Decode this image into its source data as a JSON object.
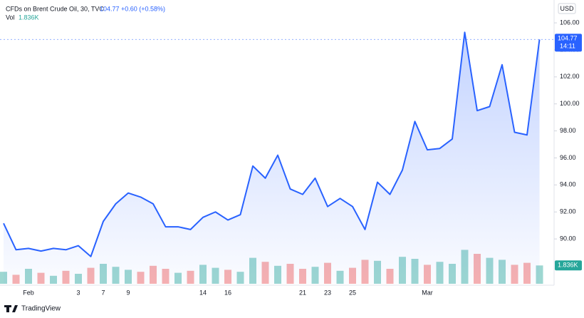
{
  "chart_data": {
    "type": "area",
    "title": "CFDs on Brent Crude Oil, 30, TVC",
    "legend_price": "104.77",
    "change": "+0.60 (+0.58%)",
    "currency": "USD",
    "countdown": "14:11",
    "brand": "TradingView",
    "categories": [
      null,
      null,
      "Feb",
      null,
      null,
      null,
      "3",
      null,
      "7",
      null,
      "9",
      null,
      null,
      null,
      null,
      null,
      "14",
      null,
      "16",
      null,
      null,
      null,
      null,
      null,
      "21",
      null,
      "23",
      null,
      "25",
      null,
      null,
      null,
      null,
      null,
      "Mar",
      null,
      null,
      null,
      null,
      null,
      null,
      null,
      null,
      null
    ],
    "ylim": [
      86.68,
      107.27
    ],
    "yticks": [
      {
        "value": 90,
        "label": "90.00"
      },
      {
        "value": 92,
        "label": "92.00"
      },
      {
        "value": 94,
        "label": "94.00"
      },
      {
        "value": 96,
        "label": "96.00"
      },
      {
        "value": 98,
        "label": "98.00"
      },
      {
        "value": 100,
        "label": "100.00"
      },
      {
        "value": 102,
        "label": "102.00"
      },
      {
        "value": 104,
        "label": "104.00"
      },
      {
        "value": 106,
        "label": "106.00"
      }
    ],
    "series": [
      {
        "name": "Price",
        "color": "#2962ff",
        "values": [
          91.16,
          89.2,
          89.3,
          89.1,
          89.3,
          89.2,
          89.5,
          88.7,
          91.3,
          92.6,
          93.4,
          93.1,
          92.6,
          90.9,
          90.9,
          90.7,
          91.6,
          92.0,
          91.4,
          91.8,
          95.4,
          94.5,
          96.2,
          93.7,
          93.3,
          94.5,
          92.4,
          93.0,
          92.4,
          90.7,
          94.2,
          93.3,
          95.1,
          98.7,
          96.6,
          96.7,
          97.4,
          105.3,
          99.5,
          99.8,
          102.9,
          97.9,
          97.7,
          104.77
        ]
      },
      {
        "name": "Vol",
        "up_color": "#26a69a",
        "down_color": "#ef5350",
        "last_label": "1.836K",
        "values": [
          1.2,
          0.9,
          1.5,
          1.1,
          0.8,
          1.3,
          1.0,
          1.6,
          2.0,
          1.7,
          1.4,
          1.2,
          1.8,
          1.5,
          1.1,
          1.3,
          1.9,
          1.6,
          1.4,
          1.2,
          2.6,
          2.2,
          1.8,
          2.0,
          1.5,
          1.7,
          2.1,
          1.3,
          1.6,
          2.4,
          2.3,
          1.5,
          2.7,
          2.5,
          1.9,
          2.2,
          2.0,
          3.4,
          3.0,
          2.6,
          2.4,
          1.9,
          2.1,
          1.836
        ]
      }
    ]
  }
}
